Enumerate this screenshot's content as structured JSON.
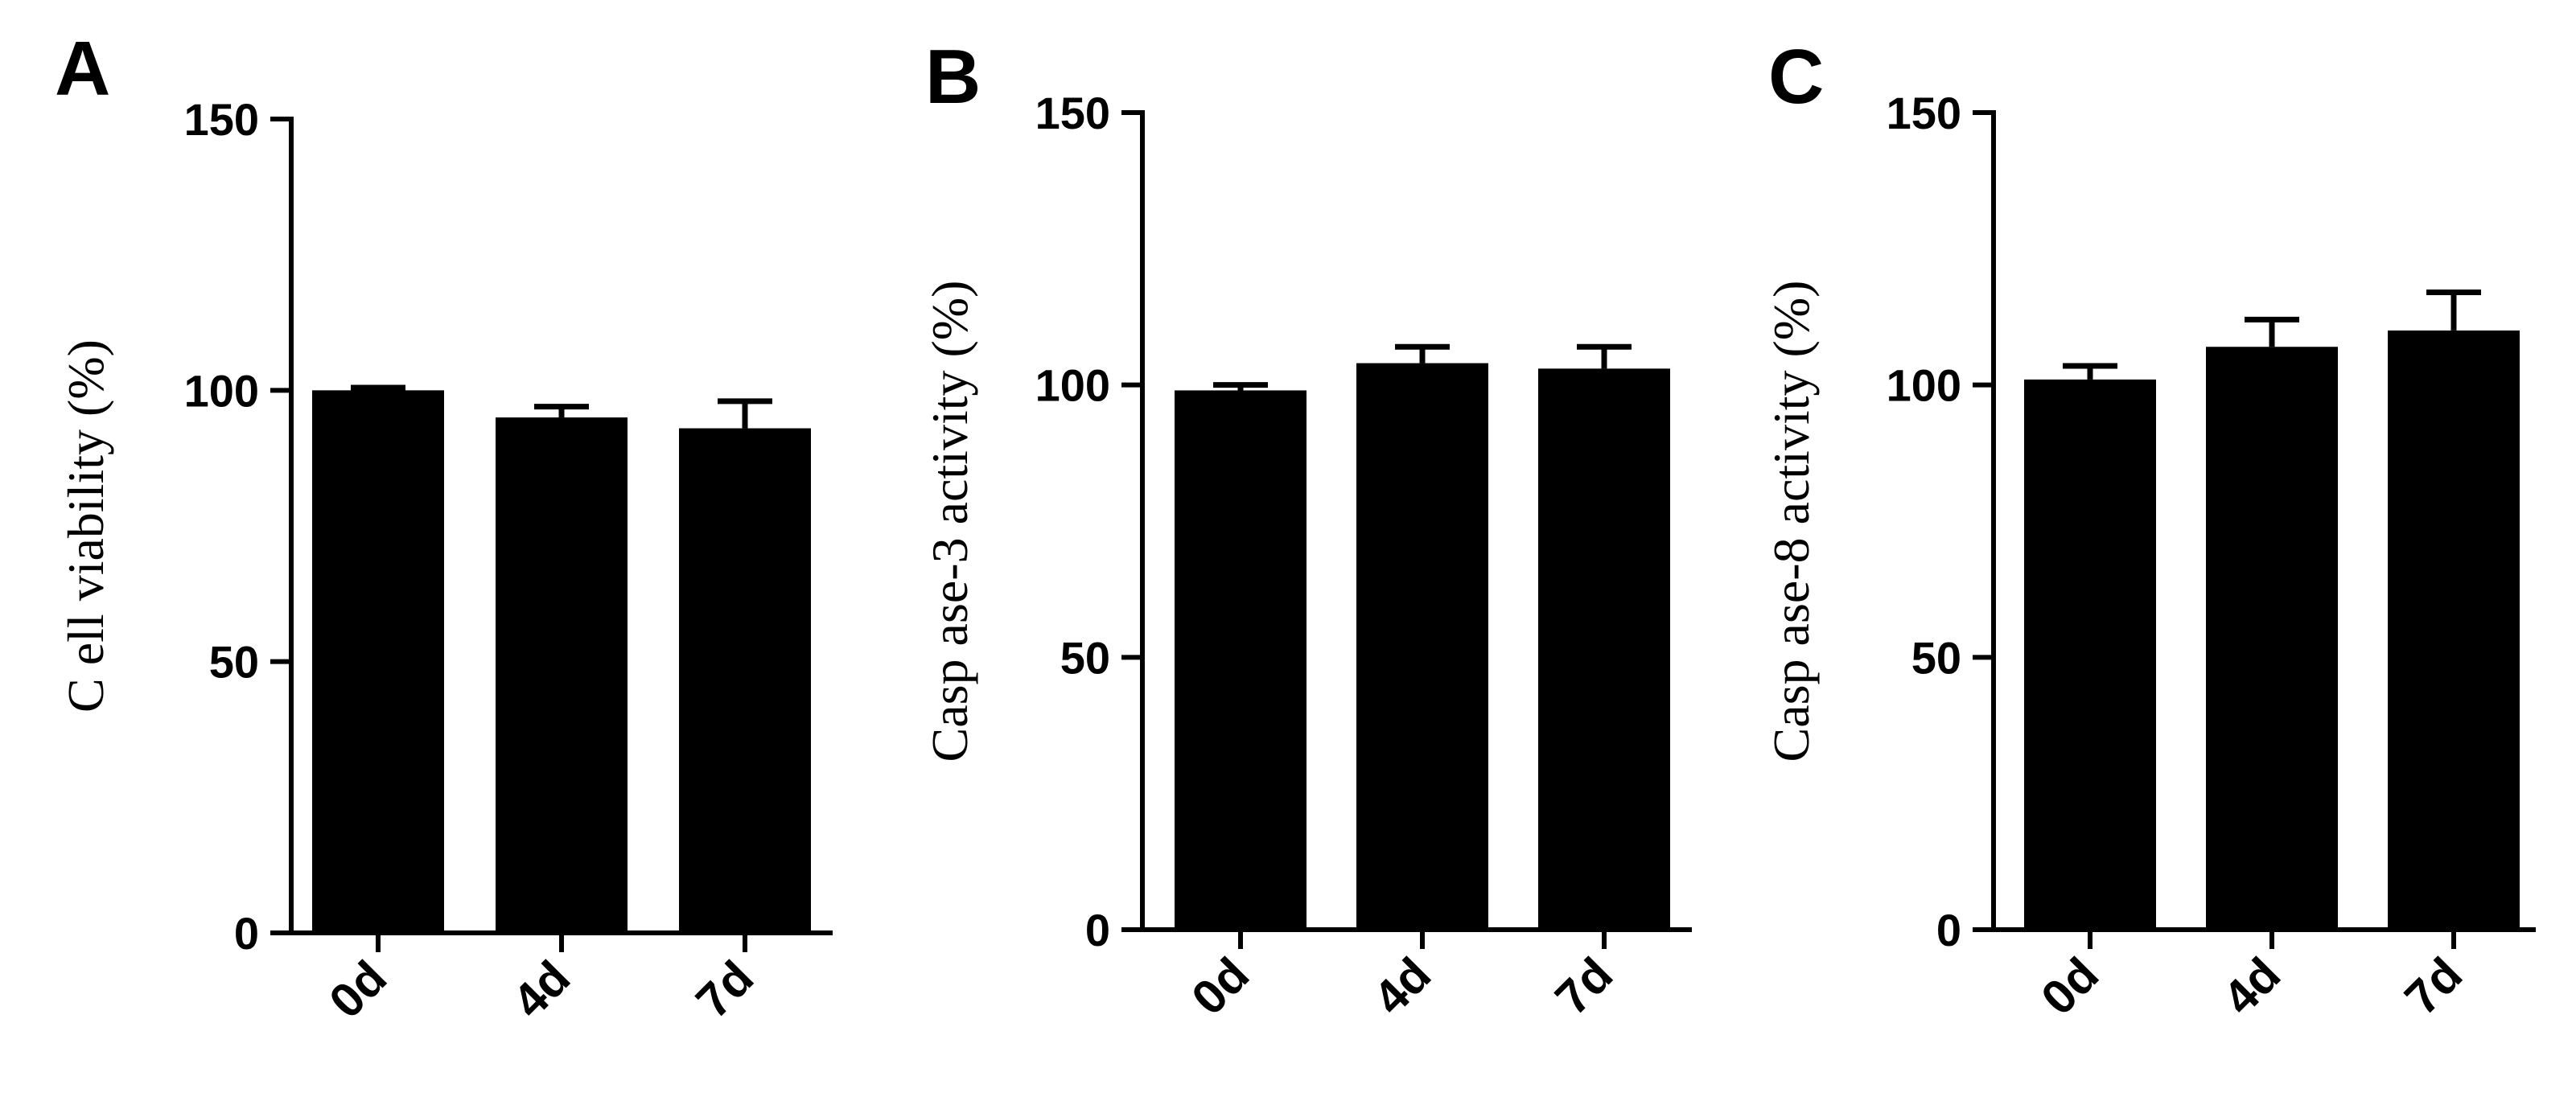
{
  "chart_data": [
    {
      "type": "bar",
      "panel": "A",
      "ylabel": "C ell viability (%)",
      "categories": [
        "0d",
        "4d",
        "7d"
      ],
      "values": [
        100,
        95,
        93
      ],
      "errors": [
        0.5,
        2,
        5
      ],
      "ylim": [
        0,
        150
      ],
      "yticks": [
        "0",
        "50",
        "100",
        "150"
      ],
      "grid": false,
      "legend": "none"
    },
    {
      "type": "bar",
      "panel": "B",
      "ylabel": "Casp ase-3 activity (%)",
      "categories": [
        "0d",
        "4d",
        "7d"
      ],
      "values": [
        99,
        104,
        103
      ],
      "errors": [
        1,
        3,
        4
      ],
      "ylim": [
        0,
        150
      ],
      "yticks": [
        "0",
        "50",
        "100",
        "150"
      ],
      "grid": false,
      "legend": "none"
    },
    {
      "type": "bar",
      "panel": "C",
      "ylabel": "Casp ase-8 activity (%)",
      "categories": [
        "0d",
        "4d",
        "7d"
      ],
      "values": [
        101,
        107,
        110
      ],
      "errors": [
        2.5,
        5,
        7
      ],
      "ylim": [
        0,
        150
      ],
      "yticks": [
        "0",
        "50",
        "100",
        "150"
      ],
      "grid": false,
      "legend": "none"
    }
  ]
}
